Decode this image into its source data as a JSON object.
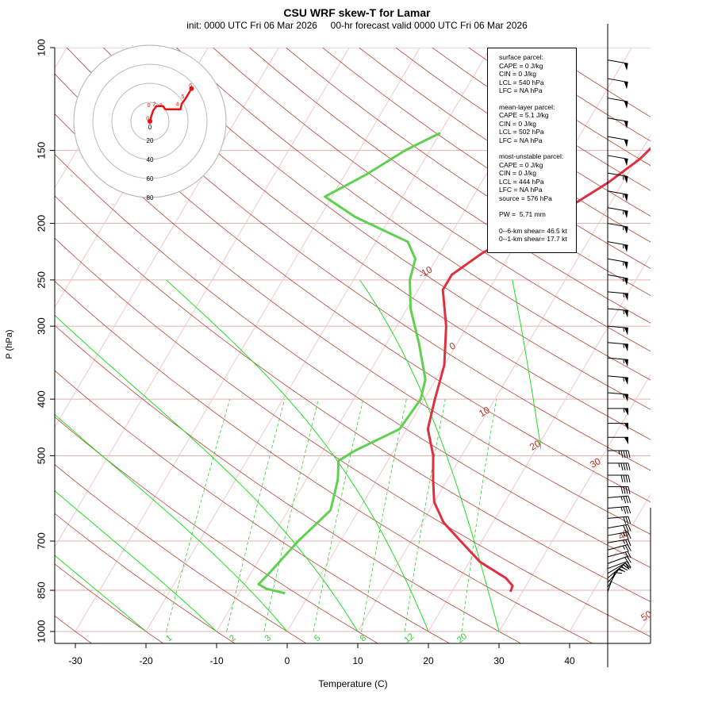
{
  "title": "CSU WRF skew-T for Lamar",
  "subtitle": "init: 0000 UTC Fri 06 Mar 2026     00-hr forecast valid 0000 UTC Fri 06 Mar 2026",
  "ylabel": "P (hPa)",
  "xlabel": "Temperature (C)",
  "info": {
    "surface": [
      "surface parcel:",
      "CAPE = 0 J/kg",
      "CIN = 0 J/kg",
      "LCL = 540 hPa",
      "LFC = NA hPa"
    ],
    "mean_layer": [
      "mean-layer parcel:",
      "CAPE = 5.1 J/kg",
      "CIN = 0 J/kg",
      "LCL = 502 hPa",
      "LFC = NA hPa"
    ],
    "most_unstable": [
      "most-unstable parcel:",
      "CAPE = 0 J/kg",
      "CIN = 0 J/kg",
      "LCL = 444 hPa",
      "LFC = NA hPa",
      "source = 576 hPa"
    ],
    "pw": "PW =  5.71 mm",
    "shear6": "0--6-km shear= 46.5 kt",
    "shear1": "0--1-km shear= 17.7 kt"
  },
  "colors": {
    "temperature": "#e03040",
    "dewpoint": "#60d050",
    "isotherm": "#b03a2e",
    "mixing_ratio": "#33cc33",
    "moist_adiabat": "#22dd22",
    "hodograph": "#ee1111"
  },
  "chart_data": {
    "type": "line",
    "title": "CSU WRF skew-T for Lamar",
    "xlabel": "Temperature (C)",
    "ylabel": "P (hPa)",
    "y_scale": "log",
    "xlim": [
      -33,
      51
    ],
    "ylim": [
      1000,
      100
    ],
    "x_ticks": [
      -30,
      -20,
      -10,
      0,
      10,
      20,
      30,
      40
    ],
    "y_ticks": [
      100,
      150,
      200,
      250,
      300,
      400,
      500,
      700,
      850,
      1000
    ],
    "isotherm_labels": [
      {
        "value": "-10",
        "p": 245
      },
      {
        "value": "0",
        "p": 328
      },
      {
        "value": "10",
        "p": 425
      },
      {
        "value": "20",
        "p": 485
      },
      {
        "value": "30",
        "p": 520
      },
      {
        "value": "40",
        "p": 690
      },
      {
        "value": "50",
        "p": 950
      }
    ],
    "mixing_ratio_labels": [
      {
        "value": "1",
        "x": -16.5
      },
      {
        "value": "2",
        "x": -7.5
      },
      {
        "value": "3",
        "x": -2.5
      },
      {
        "value": "5",
        "x": 4.5
      },
      {
        "value": "8",
        "x": 11
      },
      {
        "value": "12",
        "x": 17.5
      },
      {
        "value": "20",
        "x": 25
      }
    ],
    "series": [
      {
        "name": "",
        "label": "temperature",
        "points": [
          {
            "t": 28.3,
            "p": 855
          },
          {
            "t": 28.1,
            "p": 835
          },
          {
            "t": 26.5,
            "p": 810
          },
          {
            "t": 21.5,
            "p": 760
          },
          {
            "t": 17,
            "p": 700
          },
          {
            "t": 13,
            "p": 650
          },
          {
            "t": 10,
            "p": 600
          },
          {
            "t": 8,
            "p": 550
          },
          {
            "t": 6,
            "p": 500
          },
          {
            "t": 3,
            "p": 450
          },
          {
            "t": 1.5,
            "p": 400
          },
          {
            "t": 0,
            "p": 350
          },
          {
            "t": -3,
            "p": 300
          },
          {
            "t": -6.5,
            "p": 260
          },
          {
            "t": -6.5,
            "p": 245
          },
          {
            "t": -4,
            "p": 225
          },
          {
            "t": 0,
            "p": 205
          },
          {
            "t": 4,
            "p": 190
          },
          {
            "t": 8,
            "p": 170
          },
          {
            "t": 10.5,
            "p": 155
          },
          {
            "t": 12,
            "p": 140
          },
          {
            "t": 14,
            "p": 120
          },
          {
            "t": 15.5,
            "p": 105
          }
        ]
      },
      {
        "name": "",
        "label": "dewpoint",
        "points": [
          {
            "t": -3.5,
            "p": 860
          },
          {
            "t": -6.5,
            "p": 845
          },
          {
            "t": -8,
            "p": 830
          },
          {
            "t": -7.5,
            "p": 800
          },
          {
            "t": -6,
            "p": 700
          },
          {
            "t": -4,
            "p": 620
          },
          {
            "t": -5.5,
            "p": 550
          },
          {
            "t": -7,
            "p": 510
          },
          {
            "t": -5.5,
            "p": 490
          },
          {
            "t": -1,
            "p": 450
          },
          {
            "t": -0.5,
            "p": 400
          },
          {
            "t": -1.5,
            "p": 370
          },
          {
            "t": -5.5,
            "p": 320
          },
          {
            "t": -9.5,
            "p": 280
          },
          {
            "t": -12,
            "p": 250
          },
          {
            "t": -13,
            "p": 230
          },
          {
            "t": -15.5,
            "p": 215
          },
          {
            "t": -25,
            "p": 195
          },
          {
            "t": -31,
            "p": 180
          },
          {
            "t": -27,
            "p": 165
          },
          {
            "t": -23.5,
            "p": 150
          },
          {
            "t": -20,
            "p": 140
          }
        ]
      }
    ],
    "hodograph_rings": [
      20,
      40,
      60,
      80
    ],
    "hodograph_labels": [
      {
        "label": "0",
        "u": -1,
        "v": 0.5
      },
      {
        "label": "1",
        "u": 0.5,
        "v": 0.5
      },
      {
        "label": "0",
        "u": -0.5,
        "v": 6.5
      },
      {
        "label": "2",
        "u": 2,
        "v": 7
      },
      {
        "label": "3",
        "u": 5,
        "v": 6.5
      },
      {
        "label": "4",
        "u": 12.5,
        "v": 7
      },
      {
        "label": "5",
        "u": 15,
        "v": 10.5
      },
      {
        "label": "6",
        "u": 18.5,
        "v": 15.5
      }
    ],
    "hodograph": [
      {
        "u": 0,
        "v": 0
      },
      {
        "u": 0.5,
        "v": 2
      },
      {
        "u": 1.5,
        "v": 5
      },
      {
        "u": 3,
        "v": 7
      },
      {
        "u": 6,
        "v": 7
      },
      {
        "u": 7,
        "v": 5.5
      },
      {
        "u": 9,
        "v": 5.5
      },
      {
        "u": 12,
        "v": 5.5
      },
      {
        "u": 14,
        "v": 5.5
      },
      {
        "u": 14.5,
        "v": 8
      },
      {
        "u": 16,
        "v": 10
      },
      {
        "u": 17.5,
        "v": 12.5
      },
      {
        "u": 19,
        "v": 15
      }
    ],
    "wind_profile": [
      {
        "p": 855,
        "speed": 10,
        "dir": 200
      },
      {
        "p": 840,
        "speed": 10,
        "dir": 210
      },
      {
        "p": 825,
        "speed": 15,
        "dir": 220
      },
      {
        "p": 810,
        "speed": 15,
        "dir": 230
      },
      {
        "p": 795,
        "speed": 15,
        "dir": 240
      },
      {
        "p": 780,
        "speed": 20,
        "dir": 250
      },
      {
        "p": 765,
        "speed": 20,
        "dir": 250
      },
      {
        "p": 745,
        "speed": 20,
        "dir": 255
      },
      {
        "p": 725,
        "speed": 25,
        "dir": 255
      },
      {
        "p": 705,
        "speed": 25,
        "dir": 260
      },
      {
        "p": 685,
        "speed": 25,
        "dir": 260
      },
      {
        "p": 665,
        "speed": 30,
        "dir": 260
      },
      {
        "p": 640,
        "speed": 30,
        "dir": 265
      },
      {
        "p": 615,
        "speed": 35,
        "dir": 265
      },
      {
        "p": 590,
        "speed": 35,
        "dir": 265
      },
      {
        "p": 565,
        "speed": 40,
        "dir": 270
      },
      {
        "p": 540,
        "speed": 40,
        "dir": 270
      },
      {
        "p": 515,
        "speed": 45,
        "dir": 270
      },
      {
        "p": 490,
        "speed": 45,
        "dir": 270
      },
      {
        "p": 465,
        "speed": 50,
        "dir": 270
      },
      {
        "p": 440,
        "speed": 50,
        "dir": 270
      },
      {
        "p": 415,
        "speed": 55,
        "dir": 270
      },
      {
        "p": 390,
        "speed": 55,
        "dir": 275
      },
      {
        "p": 365,
        "speed": 55,
        "dir": 275
      },
      {
        "p": 340,
        "speed": 55,
        "dir": 275
      },
      {
        "p": 320,
        "speed": 55,
        "dir": 275
      },
      {
        "p": 300,
        "speed": 55,
        "dir": 275
      },
      {
        "p": 280,
        "speed": 55,
        "dir": 275
      },
      {
        "p": 262,
        "speed": 55,
        "dir": 275
      },
      {
        "p": 245,
        "speed": 55,
        "dir": 280
      },
      {
        "p": 230,
        "speed": 55,
        "dir": 280
      },
      {
        "p": 215,
        "speed": 55,
        "dir": 280
      },
      {
        "p": 200,
        "speed": 55,
        "dir": 280
      },
      {
        "p": 188,
        "speed": 55,
        "dir": 280
      },
      {
        "p": 176,
        "speed": 55,
        "dir": 280
      },
      {
        "p": 164,
        "speed": 55,
        "dir": 280
      },
      {
        "p": 153,
        "speed": 50,
        "dir": 280
      },
      {
        "p": 142,
        "speed": 50,
        "dir": 280
      },
      {
        "p": 132,
        "speed": 50,
        "dir": 280
      },
      {
        "p": 122,
        "speed": 50,
        "dir": 280
      },
      {
        "p": 113,
        "speed": 50,
        "dir": 280
      },
      {
        "p": 105,
        "speed": 50,
        "dir": 280
      }
    ]
  }
}
